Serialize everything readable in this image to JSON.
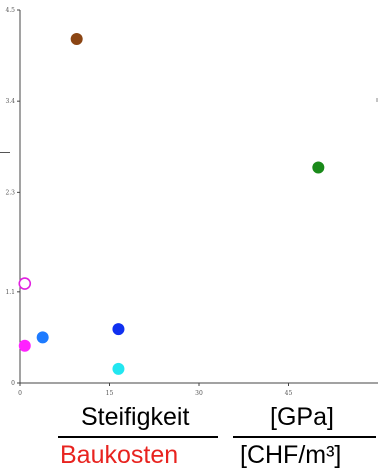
{
  "chart_data": {
    "type": "scatter",
    "title": "",
    "xlabel": "",
    "ylabel": "",
    "x_ticks": [
      "0",
      "15",
      "30",
      "45"
    ],
    "y_ticks": [
      "0",
      "1.1",
      "2.3",
      "3.4",
      "4.5"
    ],
    "xlim": [
      0,
      60
    ],
    "ylim": [
      0,
      4.5
    ],
    "grid": false,
    "points": [
      {
        "x": 9.5,
        "y": 4.15,
        "color": "#8b4513",
        "filled": true
      },
      {
        "x": 50,
        "y": 2.6,
        "color": "#1a8a1a",
        "filled": true
      },
      {
        "x": 0.8,
        "y": 1.2,
        "color": "#e020e0",
        "filled": false
      },
      {
        "x": 0.8,
        "y": 0.45,
        "color": "#ff22ff",
        "filled": true
      },
      {
        "x": 3.8,
        "y": 0.55,
        "color": "#1e7bff",
        "filled": true
      },
      {
        "x": 16.5,
        "y": 0.65,
        "color": "#1030f0",
        "filled": true
      },
      {
        "x": 16.5,
        "y": 0.17,
        "color": "#22e6f0",
        "filled": true
      }
    ]
  },
  "formula": {
    "left_numerator": "Steifigkeit",
    "left_denominator": "Baukosten",
    "right_numerator": "[GPa]",
    "right_denominator": "[CHF/m³]",
    "denominator_color": "#e8231f",
    "text_color": "#000000"
  }
}
